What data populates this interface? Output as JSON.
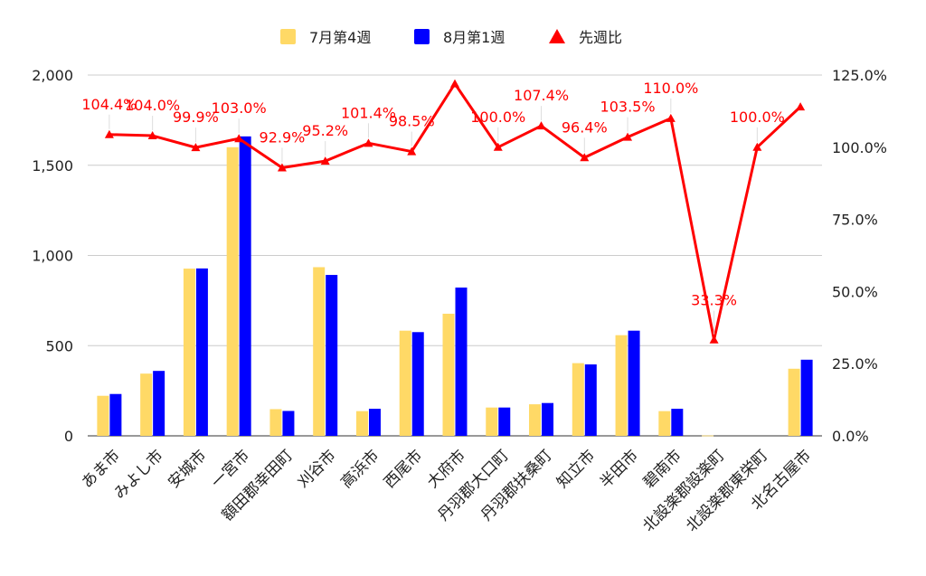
{
  "chart_data": {
    "type": "bar",
    "categories": [
      "あま市",
      "みよし市",
      "安城市",
      "一宮市",
      "額田郡幸田町",
      "刈谷市",
      "高浜市",
      "西尾市",
      "大府市",
      "丹羽郡大口町",
      "丹羽郡扶桑町",
      "知立市",
      "半田市",
      "碧南市",
      "北設楽郡設楽町",
      "北設楽郡東栄町",
      "北名古屋市"
    ],
    "series": [
      {
        "name": "7月第4週",
        "color": "#FFD966",
        "values": [
          222,
          345,
          927,
          1600,
          148,
          935,
          137,
          583,
          677,
          157,
          175,
          403,
          558,
          137,
          2,
          0,
          372
        ]
      },
      {
        "name": "8月第1週",
        "color": "#0000FF",
        "values": [
          232,
          360,
          928,
          1660,
          138,
          892,
          150,
          575,
          822,
          157,
          182,
          396,
          583,
          150,
          0,
          0,
          422
        ]
      }
    ],
    "line_series": {
      "name": "先週比",
      "color": "#FF0000",
      "values": [
        104.4,
        104.0,
        99.9,
        103.0,
        92.9,
        95.2,
        101.4,
        98.5,
        122.0,
        100.0,
        107.4,
        96.4,
        103.5,
        110.0,
        33.3,
        100.0,
        114.0
      ],
      "labels": [
        "104.4%",
        "104.0%",
        "99.9%",
        "103.0%",
        "92.9%",
        "95.2%",
        "101.4%",
        "98.5%",
        "",
        "100.0%",
        "107.4%",
        "96.4%",
        "103.5%",
        "110.0%",
        "33.3%",
        "100.0%",
        ""
      ]
    },
    "y_left": {
      "ylim": [
        0,
        2000
      ],
      "ticks": [
        0,
        500,
        1000,
        1500,
        2000
      ],
      "tick_labels": [
        "0",
        "500",
        "1,000",
        "1,500",
        "2,000"
      ]
    },
    "y_right": {
      "ylim": [
        0,
        125
      ],
      "ticks": [
        0,
        25,
        50,
        75,
        100,
        125
      ],
      "tick_labels": [
        "0.0%",
        "25.0%",
        "50.0%",
        "75.0%",
        "100.0%",
        "125.0%"
      ]
    },
    "legend_position": "top",
    "grid": true
  }
}
